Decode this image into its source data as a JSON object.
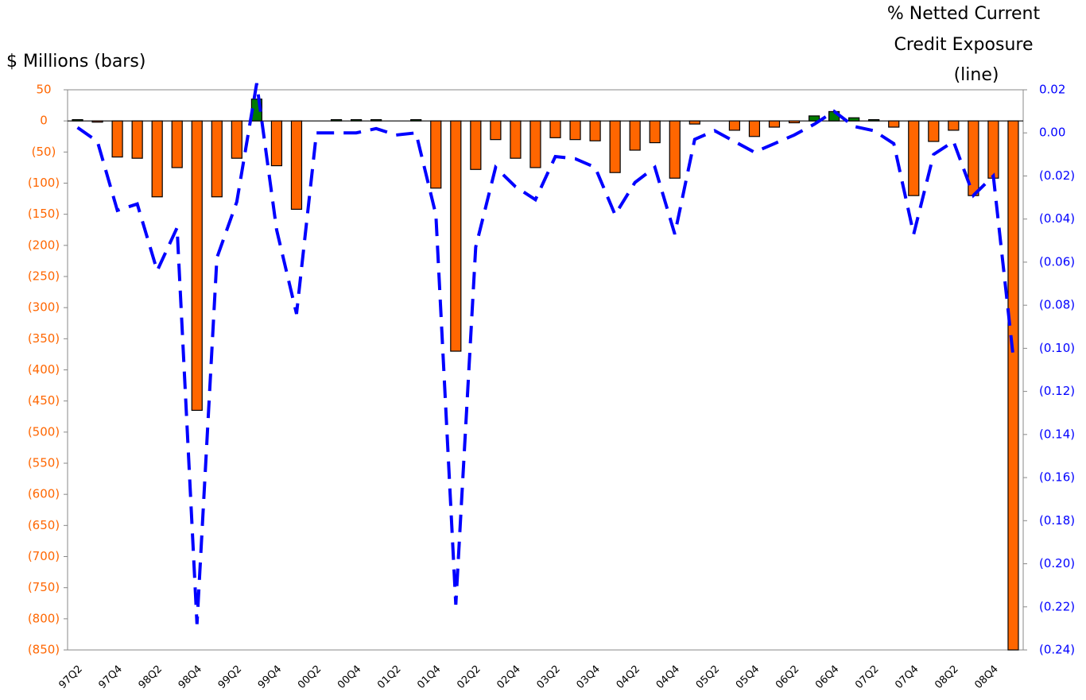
{
  "chart_data": {
    "type": "bar_line",
    "y_label": "$ Millions (bars)",
    "y2_label": [
      "% Netted Current",
      "Credit Exposure",
      "(line)"
    ],
    "categories": [
      "97Q2",
      null,
      "97Q4",
      null,
      "98Q2",
      null,
      "98Q4",
      null,
      "99Q2",
      null,
      "99Q4",
      null,
      "00Q2",
      null,
      "00Q4",
      null,
      "01Q2",
      null,
      "01Q4",
      null,
      "02Q2",
      null,
      "02Q4",
      null,
      "03Q2",
      null,
      "03Q4",
      null,
      "04Q2",
      null,
      "04Q4",
      null,
      "05Q2",
      null,
      "05Q4",
      null,
      "06Q2",
      null,
      "06Q4",
      null,
      "07Q2",
      null,
      "07Q4",
      null,
      "08Q2",
      null,
      "08Q4",
      null
    ],
    "series": [
      {
        "type": "bar",
        "color": "#ff6600",
        "positive_color": "#007a00",
        "values": [
          2,
          -2,
          -58,
          -60,
          -122,
          -75,
          -465,
          -122,
          -60,
          35,
          -72,
          -142,
          0,
          2,
          2,
          2,
          0,
          2,
          -108,
          -370,
          -78,
          -30,
          -60,
          -75,
          -27,
          -30,
          -32,
          -83,
          -47,
          -35,
          -92,
          -5,
          0,
          -15,
          -25,
          -10,
          -3,
          8,
          15,
          5,
          2,
          -10,
          -120,
          -33,
          -15,
          -120,
          -92,
          -850
        ]
      },
      {
        "type": "line",
        "axis": "y2",
        "color": "#0000ff",
        "values": [
          0.0025,
          -0.004,
          -0.036,
          -0.033,
          -0.064,
          -0.044,
          -0.228,
          -0.058,
          -0.032,
          0.023,
          -0.045,
          -0.084,
          0.0,
          0.0,
          0.0,
          0.002,
          -0.001,
          0.0,
          -0.038,
          -0.219,
          -0.053,
          -0.016,
          -0.025,
          -0.031,
          -0.011,
          -0.012,
          -0.016,
          -0.038,
          -0.023,
          -0.016,
          -0.047,
          -0.003,
          0.001,
          -0.004,
          -0.009,
          -0.005,
          -0.001,
          0.004,
          0.01,
          0.003,
          0.001,
          -0.005,
          -0.047,
          -0.01,
          -0.004,
          -0.029,
          -0.02,
          -0.104
        ]
      }
    ],
    "ylim": [
      -850,
      50
    ],
    "yticks": [
      {
        "value": -850,
        "label": "(850)"
      },
      {
        "value": -800,
        "label": "(800)"
      },
      {
        "value": -750,
        "label": "(750)"
      },
      {
        "value": -700,
        "label": "(700)"
      },
      {
        "value": -650,
        "label": "(650)"
      },
      {
        "value": -600,
        "label": "(600)"
      },
      {
        "value": -550,
        "label": "(550)"
      },
      {
        "value": -500,
        "label": "(500)"
      },
      {
        "value": -450,
        "label": "(450)"
      },
      {
        "value": -400,
        "label": "(400)"
      },
      {
        "value": -350,
        "label": "(350)"
      },
      {
        "value": -300,
        "label": "(300)"
      },
      {
        "value": -250,
        "label": "(250)"
      },
      {
        "value": -200,
        "label": "(200)"
      },
      {
        "value": -150,
        "label": "(150)"
      },
      {
        "value": -100,
        "label": "(100)"
      },
      {
        "value": -50,
        "label": "(50)"
      },
      0,
      50
    ],
    "y2lim": [
      -0.24,
      0.02
    ],
    "y2ticks": [
      {
        "value": -0.24,
        "label": "(0.24)"
      },
      {
        "value": -0.22,
        "label": "(0.22)"
      },
      {
        "value": -0.2,
        "label": "(0.20)"
      },
      {
        "value": -0.18,
        "label": "(0.18)"
      },
      {
        "value": -0.16,
        "label": "(0.16)"
      },
      {
        "value": -0.14,
        "label": "(0.14)"
      },
      {
        "value": -0.12,
        "label": "(0.12)"
      },
      {
        "value": -0.1,
        "label": "(0.10)"
      },
      {
        "value": -0.08,
        "label": "(0.08)"
      },
      {
        "value": -0.06,
        "label": "(0.06)"
      },
      {
        "value": -0.04,
        "label": "(0.04)"
      },
      {
        "value": -0.02,
        "label": "(0.02)"
      },
      {
        "value": 0,
        "label": "0.00"
      },
      0.02
    ],
    "y_tick_color": "#ff6600",
    "y2_tick_color": "#0000ff"
  }
}
